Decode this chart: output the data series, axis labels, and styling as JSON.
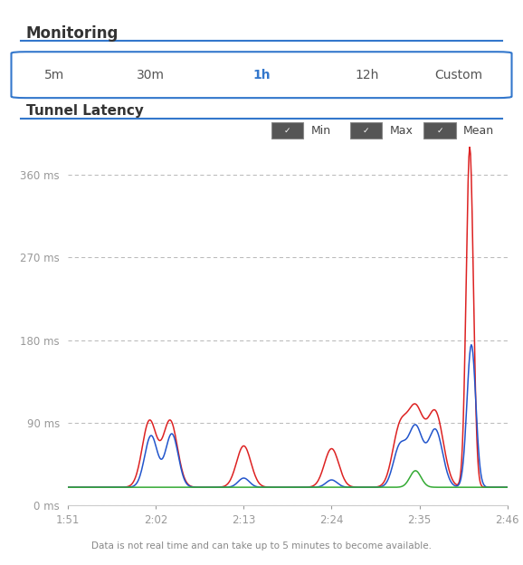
{
  "title_monitoring": "Monitoring",
  "title_chart": "Tunnel Latency",
  "tabs": [
    "5m",
    "30m",
    "1h",
    "12h",
    "Custom"
  ],
  "active_tab": "1h",
  "xlabel_ticks": [
    "1:51",
    "2:02",
    "2:13",
    "2:24",
    "2:35",
    "2:46"
  ],
  "yticks": [
    0,
    90,
    180,
    270,
    360
  ],
  "ytick_labels": [
    "0 ms",
    "90 ms",
    "180 ms",
    "270 ms",
    "360 ms"
  ],
  "ylim": [
    0,
    390
  ],
  "xlim": [
    0,
    55
  ],
  "legend_labels": [
    "Min",
    "Max",
    "Mean"
  ],
  "legend_colors": [
    "#33aa33",
    "#dd2222",
    "#2255cc"
  ],
  "line_colors": {
    "min": "#33aa33",
    "max": "#dd2222",
    "mean": "#2255cc"
  },
  "footnote": "Data is not real time and can take up to 5 minutes to become available.",
  "background_color": "#ffffff",
  "grid_color": "#bbbbbb",
  "tab_border_color": "#3377cc",
  "header_line_color": "#3377cc"
}
